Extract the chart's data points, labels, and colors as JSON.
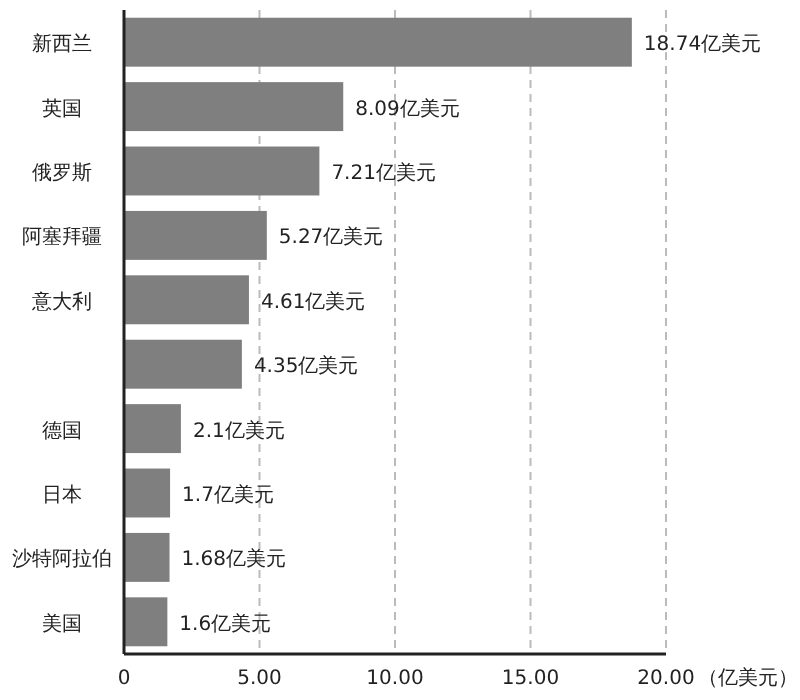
{
  "chart_data": {
    "type": "bar",
    "orientation": "horizontal",
    "categories": [
      "新西兰",
      "英国",
      "俄罗斯",
      "阿塞拜疆",
      "意大利",
      null,
      "德国",
      "日本",
      "沙特阿拉伯",
      "美国"
    ],
    "values": [
      18.74,
      8.09,
      7.21,
      5.27,
      4.61,
      4.35,
      2.1,
      1.7,
      1.68,
      1.6
    ],
    "value_labels": [
      "18.74亿美元",
      "8.09亿美元",
      "7.21亿美元",
      "5.27亿美元",
      "4.61亿美元",
      "4.35亿美元",
      "2.1亿美元",
      "1.7亿美元",
      "1.68亿美元",
      "1.6亿美元"
    ],
    "color": "#7f7f7f",
    "xlim": [
      0,
      20
    ],
    "xticks": [
      0,
      {
        "value": 5,
        "label": "5.00"
      },
      {
        "value": 10,
        "label": "10.00"
      },
      {
        "value": 15,
        "label": "15.00"
      },
      {
        "value": 20,
        "label": "20.00"
      }
    ],
    "xlabel": "（亿美元）",
    "grid": "x"
  }
}
